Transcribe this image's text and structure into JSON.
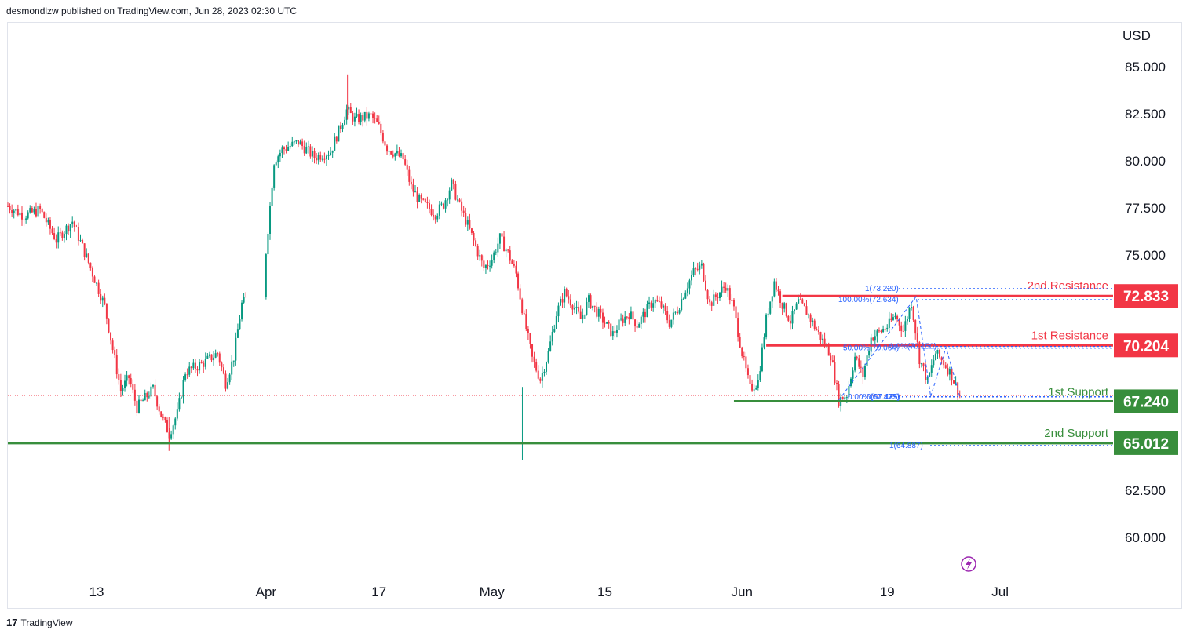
{
  "header": {
    "publisher_text": "desmondlzw published on TradingView.com, Jun 28, 2023 02:30 UTC"
  },
  "footer": {
    "brand": "TradingView",
    "logo_glyph": "17"
  },
  "chart_data": {
    "type": "candlestick",
    "title": "",
    "currency": "USD",
    "y_ticks": [
      "85.000",
      "82.500",
      "80.000",
      "77.500",
      "75.000",
      "62.500",
      "60.000"
    ],
    "ylim": [
      57.8,
      87.3
    ],
    "x_labels": [
      {
        "label": "13",
        "date": "2023-03-13"
      },
      {
        "label": "Apr",
        "date": "2023-04-03"
      },
      {
        "label": "17",
        "date": "2023-04-17"
      },
      {
        "label": "May",
        "date": "2023-05-01"
      },
      {
        "label": "15",
        "date": "2023-05-15"
      },
      {
        "label": "Jun",
        "date": "2023-06-01"
      },
      {
        "label": "19",
        "date": "2023-06-19"
      },
      {
        "label": "Jul",
        "date": "2023-07-03"
      }
    ],
    "x_range": [
      "2023-03-02",
      "2023-07-17"
    ],
    "last_price_guide": 67.55,
    "levels": [
      {
        "name": "2nd.Resistance",
        "value": 72.833,
        "label": "72.833",
        "color": "#f23645",
        "from": "2023-06-06"
      },
      {
        "name": "1st Resistance",
        "value": 70.204,
        "label": "70.204",
        "color": "#f23645",
        "from": "2023-06-04"
      },
      {
        "name": "1st Support",
        "value": 67.24,
        "label": "67.240",
        "color": "#388e3c",
        "from": "2023-05-31"
      },
      {
        "name": "2nd Support",
        "value": 65.012,
        "label": "65.012",
        "color": "#388e3c",
        "from": "2023-03-02"
      }
    ],
    "fib_labels": [
      {
        "text": "1(73.220)",
        "value": 73.22
      },
      {
        "text": "100.00%(72.634)",
        "value": 72.634
      },
      {
        "text": "50.00%(70.064)",
        "value": 70.064
      },
      {
        "text": "0.0%(70.150)",
        "value": 70.15
      },
      {
        "text": "0.00%(67.475)",
        "value": 67.475
      },
      {
        "text": "0(67.475)",
        "value": 67.475
      },
      {
        "text": "1(64.887)",
        "value": 64.887
      }
    ],
    "price_path": [
      [
        "2023-03-02",
        77.6
      ],
      [
        "2023-03-04",
        77.1
      ],
      [
        "2023-03-06",
        77.4
      ],
      [
        "2023-03-08",
        75.8
      ],
      [
        "2023-03-10",
        76.8
      ],
      [
        "2023-03-12",
        74.6
      ],
      [
        "2023-03-14",
        72.3
      ],
      [
        "2023-03-15",
        70.0
      ],
      [
        "2023-03-16",
        67.8
      ],
      [
        "2023-03-17",
        68.5
      ],
      [
        "2023-03-18",
        66.9
      ],
      [
        "2023-03-20",
        67.9
      ],
      [
        "2023-03-21",
        66.5
      ],
      [
        "2023-03-22",
        65.5
      ],
      [
        "2023-03-23",
        66.6
      ],
      [
        "2023-03-24",
        68.8
      ],
      [
        "2023-03-26",
        69.2
      ],
      [
        "2023-03-28",
        69.8
      ],
      [
        "2023-03-29",
        68.2
      ],
      [
        "2023-03-30",
        69.6
      ],
      [
        "2023-03-31",
        72.4
      ],
      [
        "2023-04-02",
        73.4
      ],
      [
        "2023-04-03",
        75.2
      ],
      [
        "2023-04-04",
        80.0
      ],
      [
        "2023-04-05",
        80.6
      ],
      [
        "2023-04-07",
        81.0
      ],
      [
        "2023-04-09",
        80.2
      ],
      [
        "2023-04-11",
        80.5
      ],
      [
        "2023-04-12",
        81.6
      ],
      [
        "2023-04-13",
        82.7
      ],
      [
        "2023-04-14",
        82.2
      ],
      [
        "2023-04-16",
        82.4
      ],
      [
        "2023-04-17",
        81.8
      ],
      [
        "2023-04-18",
        80.7
      ],
      [
        "2023-04-20",
        80.1
      ],
      [
        "2023-04-21",
        78.6
      ],
      [
        "2023-04-22",
        77.9
      ],
      [
        "2023-04-24",
        77.2
      ],
      [
        "2023-04-25",
        77.7
      ],
      [
        "2023-04-26",
        78.8
      ],
      [
        "2023-04-27",
        77.6
      ],
      [
        "2023-04-28",
        76.6
      ],
      [
        "2023-04-30",
        74.3
      ],
      [
        "2023-05-01",
        74.8
      ],
      [
        "2023-05-02",
        75.9
      ],
      [
        "2023-05-03",
        75.1
      ],
      [
        "2023-05-04",
        74.0
      ],
      [
        "2023-05-05",
        71.6
      ],
      [
        "2023-05-06",
        69.5
      ],
      [
        "2023-05-07",
        68.4
      ],
      [
        "2023-05-08",
        69.8
      ],
      [
        "2023-05-09",
        71.9
      ],
      [
        "2023-05-10",
        73.0
      ],
      [
        "2023-05-11",
        72.4
      ],
      [
        "2023-05-12",
        71.6
      ],
      [
        "2023-05-13",
        72.6
      ],
      [
        "2023-05-15",
        71.4
      ],
      [
        "2023-05-16",
        70.8
      ],
      [
        "2023-05-17",
        71.5
      ],
      [
        "2023-05-18",
        71.9
      ],
      [
        "2023-05-19",
        71.3
      ],
      [
        "2023-05-21",
        72.6
      ],
      [
        "2023-05-22",
        72.3
      ],
      [
        "2023-05-23",
        71.4
      ],
      [
        "2023-05-24",
        72.1
      ],
      [
        "2023-05-25",
        73.2
      ],
      [
        "2023-05-26",
        74.1
      ],
      [
        "2023-05-27",
        74.4
      ],
      [
        "2023-05-28",
        72.4
      ],
      [
        "2023-05-29",
        72.9
      ],
      [
        "2023-05-30",
        73.4
      ],
      [
        "2023-05-31",
        72.1
      ],
      [
        "2023-06-01",
        69.8
      ],
      [
        "2023-06-02",
        67.9
      ],
      [
        "2023-06-03",
        68.3
      ],
      [
        "2023-06-04",
        71.6
      ],
      [
        "2023-06-05",
        73.6
      ],
      [
        "2023-06-06",
        72.4
      ],
      [
        "2023-06-07",
        71.5
      ],
      [
        "2023-06-08",
        72.5
      ],
      [
        "2023-06-09",
        72.0
      ],
      [
        "2023-06-10",
        71.2
      ],
      [
        "2023-06-12",
        69.7
      ],
      [
        "2023-06-13",
        67.3
      ],
      [
        "2023-06-14",
        67.6
      ],
      [
        "2023-06-15",
        69.6
      ],
      [
        "2023-06-16",
        68.6
      ],
      [
        "2023-06-17",
        70.6
      ],
      [
        "2023-06-19",
        71.2
      ],
      [
        "2023-06-20",
        71.8
      ],
      [
        "2023-06-21",
        71.0
      ],
      [
        "2023-06-22",
        72.5
      ],
      [
        "2023-06-23",
        69.5
      ],
      [
        "2023-06-24",
        68.3
      ],
      [
        "2023-06-25",
        69.8
      ],
      [
        "2023-06-26",
        69.3
      ],
      [
        "2023-06-27",
        68.6
      ],
      [
        "2023-06-28",
        67.55
      ]
    ]
  }
}
